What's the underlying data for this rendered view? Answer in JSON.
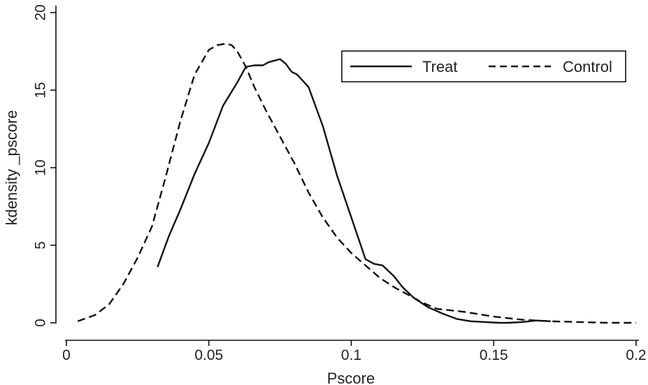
{
  "chart_data": {
    "type": "line",
    "xlabel": "Pscore",
    "ylabel": "kdensity _pscore",
    "xlim": [
      0,
      0.2
    ],
    "ylim": [
      0,
      20
    ],
    "x_ticks": [
      {
        "value": 0,
        "label": "0"
      },
      {
        "value": 0.05,
        "label": "0.05"
      },
      {
        "value": 0.1,
        "label": "0.1"
      },
      {
        "value": 0.15,
        "label": "0.15"
      },
      {
        "value": 0.2,
        "label": "0.2"
      }
    ],
    "y_ticks": [
      {
        "value": 0,
        "label": "0"
      },
      {
        "value": 5,
        "label": "5"
      },
      {
        "value": 10,
        "label": "10"
      },
      {
        "value": 15,
        "label": "15"
      },
      {
        "value": 20,
        "label": "20"
      }
    ],
    "grid": false,
    "legend_position": "top-right",
    "series": [
      {
        "name": "Treat",
        "style": "solid",
        "color": "#111111",
        "x": [
          0.032,
          0.036,
          0.04,
          0.045,
          0.05,
          0.055,
          0.06,
          0.063,
          0.066,
          0.069,
          0.071,
          0.073,
          0.075,
          0.077,
          0.079,
          0.081,
          0.085,
          0.09,
          0.095,
          0.1,
          0.105,
          0.108,
          0.111,
          0.115,
          0.118,
          0.122,
          0.127,
          0.132,
          0.137,
          0.142,
          0.147,
          0.152,
          0.155,
          0.16,
          0.165,
          0.17
        ],
        "y": [
          3.6,
          5.6,
          7.3,
          9.6,
          11.6,
          14.0,
          15.5,
          16.5,
          16.6,
          16.6,
          16.8,
          16.9,
          17.0,
          16.7,
          16.2,
          16.0,
          15.2,
          12.7,
          9.5,
          6.8,
          4.1,
          3.8,
          3.7,
          3.0,
          2.3,
          1.6,
          1.0,
          0.6,
          0.25,
          0.1,
          0.05,
          0.0,
          0.0,
          0.05,
          0.15,
          0.1
        ]
      },
      {
        "name": "Control",
        "style": "dashed",
        "color": "#111111",
        "x": [
          0.004,
          0.01,
          0.015,
          0.02,
          0.025,
          0.03,
          0.035,
          0.04,
          0.045,
          0.05,
          0.053,
          0.056,
          0.058,
          0.06,
          0.063,
          0.066,
          0.07,
          0.075,
          0.08,
          0.085,
          0.09,
          0.095,
          0.1,
          0.105,
          0.11,
          0.115,
          0.12,
          0.125,
          0.13,
          0.135,
          0.14,
          0.15,
          0.16,
          0.17,
          0.18,
          0.19,
          0.2
        ],
        "y": [
          0.1,
          0.5,
          1.2,
          2.5,
          4.2,
          6.2,
          9.5,
          13.0,
          16.0,
          17.6,
          17.9,
          18.0,
          17.9,
          17.5,
          16.5,
          15.2,
          13.7,
          12.0,
          10.3,
          8.4,
          6.8,
          5.5,
          4.5,
          3.7,
          2.9,
          2.3,
          1.8,
          1.3,
          0.9,
          0.8,
          0.7,
          0.4,
          0.2,
          0.1,
          0.05,
          0.0,
          0.0
        ]
      }
    ]
  }
}
